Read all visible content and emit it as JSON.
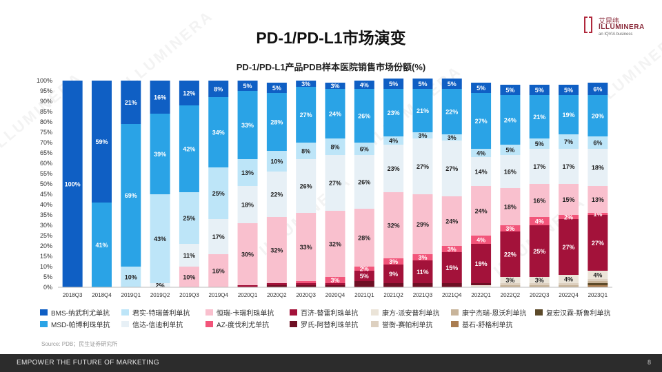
{
  "page": {
    "title": "PD-1/PD-L1市场演变",
    "logo": {
      "cn": "艾昆纬",
      "en": "ILLUMINERA",
      "tagline": "an IQVIA business"
    },
    "watermark": "ILLUMINERA",
    "source": "Source: PDB；民生证券研究所",
    "footer_slogan": "EMPOWER THE FUTURE OF MARKETING",
    "page_number": "8"
  },
  "chart_data": {
    "type": "bar",
    "stacked": true,
    "title": "PD-1/PD-L1产品PDB样本医院销售市场份额(%)",
    "ylim": [
      0,
      100
    ],
    "yticks": [
      "0%",
      "5%",
      "10%",
      "15%",
      "20%",
      "25%",
      "30%",
      "35%",
      "40%",
      "45%",
      "50%",
      "55%",
      "60%",
      "65%",
      "70%",
      "75%",
      "80%",
      "85%",
      "90%",
      "95%",
      "100%"
    ],
    "categories": [
      "2018Q3",
      "2018Q4",
      "2019Q1",
      "2019Q2",
      "2019Q3",
      "2019Q4",
      "2020Q1",
      "2020Q2",
      "2020Q3",
      "2020Q4",
      "2021Q1",
      "2021Q2",
      "2021Q3",
      "2021Q4",
      "2022Q1",
      "2022Q2",
      "2022Q3",
      "2022Q4",
      "2023Q1"
    ],
    "series": [
      {
        "name": "基石-舒格利单抗",
        "color": "#a97c50",
        "values": [
          0,
          0,
          0,
          0,
          0,
          0,
          0,
          0,
          0,
          0,
          0,
          0,
          0,
          0,
          0,
          0,
          0,
          0,
          1
        ],
        "labels": [
          "",
          "",
          "",
          "",
          "",
          "",
          "",
          "",
          "",
          "",
          "",
          "",
          "",
          "",
          "",
          "",
          "",
          "",
          ""
        ]
      },
      {
        "name": "复宏汉霖-斯鲁利单抗",
        "color": "#5c4a2a",
        "values": [
          0,
          0,
          0,
          0,
          0,
          0,
          0,
          0,
          0,
          0,
          0,
          0,
          0,
          0,
          0,
          0,
          0,
          0,
          1
        ],
        "labels": [
          "",
          "",
          "",
          "",
          "",
          "",
          "",
          "",
          "",
          "",
          "",
          "",
          "",
          "",
          "",
          "",
          "",
          "",
          ""
        ]
      },
      {
        "name": "康宁杰瑞-恩沃利单抗",
        "color": "#c8b49a",
        "values": [
          0,
          0,
          0,
          0,
          0,
          0,
          0,
          0,
          0,
          0,
          0,
          0,
          0,
          0,
          0,
          1,
          1,
          1,
          1
        ],
        "labels": [
          "",
          "",
          "",
          "",
          "",
          "",
          "",
          "",
          "",
          "",
          "",
          "",
          "",
          "",
          "",
          "",
          "",
          "",
          ""
        ]
      },
      {
        "name": "誉衡-赛帕利单抗",
        "color": "#ddd0c0",
        "values": [
          0,
          0,
          0,
          0,
          0,
          0,
          0,
          0,
          0,
          0,
          0,
          0,
          0,
          0,
          0,
          1,
          1,
          1,
          1
        ],
        "labels": [
          "",
          "",
          "",
          "",
          "",
          "",
          "",
          "",
          "",
          "",
          "",
          "",
          "",
          "",
          "",
          "",
          "",
          "",
          ""
        ]
      },
      {
        "name": "康方-派安普利单抗",
        "color": "#ebe4d8",
        "values": [
          0,
          0,
          0,
          0,
          0,
          0,
          0,
          0,
          0,
          0,
          0,
          0,
          0,
          0,
          1,
          3,
          3,
          4,
          4
        ],
        "labels": [
          "",
          "",
          "",
          "",
          "",
          "",
          "",
          "",
          "",
          "",
          "",
          "",
          "",
          "",
          "",
          "3%",
          "3%",
          "4%",
          "4%"
        ]
      },
      {
        "name": "罗氏-阿替利珠单抗",
        "color": "#6e0f24",
        "values": [
          0,
          0,
          0,
          0,
          0,
          0,
          0,
          1,
          1,
          1,
          3,
          2,
          2,
          2,
          1,
          0,
          0,
          0,
          0
        ],
        "labels": [
          "",
          "",
          "",
          "",
          "",
          "",
          "",
          "",
          "",
          "",
          "",
          "",
          "",
          "",
          "",
          "",
          "",
          "",
          ""
        ]
      },
      {
        "name": "百济-替雷利珠单抗",
        "color": "#a3123a",
        "values": [
          0,
          0,
          0,
          0,
          0,
          0,
          1,
          1,
          1,
          1,
          5,
          9,
          11,
          15,
          19,
          22,
          25,
          27,
          27
        ],
        "labels": [
          "",
          "",
          "",
          "",
          "",
          "",
          "",
          "",
          "",
          "",
          "5%",
          "9%",
          "11%",
          "15%",
          "19%",
          "22%",
          "25%",
          "27%",
          "27%"
        ]
      },
      {
        "name": "AZ-度伐利尤单抗",
        "color": "#f2557a",
        "values": [
          0,
          0,
          0,
          0,
          0,
          0,
          0,
          0,
          1,
          3,
          2,
          3,
          3,
          3,
          4,
          3,
          4,
          2,
          1
        ],
        "labels": [
          "",
          "",
          "",
          "",
          "",
          "",
          "",
          "",
          "",
          "3%",
          "2%",
          "3%",
          "3%",
          "3%",
          "4%",
          "3%",
          "4%",
          "2%",
          "1%"
        ]
      },
      {
        "name": "恒瑞-卡瑞利珠单抗",
        "color": "#f9c0ce",
        "values": [
          0,
          0,
          0,
          0,
          10,
          16,
          30,
          32,
          33,
          32,
          28,
          32,
          29,
          24,
          24,
          18,
          16,
          15,
          13
        ],
        "labels": [
          "",
          "",
          "",
          "",
          "10%",
          "16%",
          "30%",
          "32%",
          "33%",
          "32%",
          "28%",
          "32%",
          "29%",
          "24%",
          "24%",
          "18%",
          "16%",
          "15%",
          "13%"
        ]
      },
      {
        "name": "信达-信迪利单抗",
        "color": "#e7f0f6",
        "values": [
          0,
          0,
          0,
          2,
          11,
          17,
          18,
          22,
          26,
          27,
          26,
          23,
          27,
          27,
          14,
          16,
          17,
          17,
          18
        ],
        "labels": [
          "",
          "",
          "",
          "2%",
          "11%",
          "17%",
          "18%",
          "22%",
          "26%",
          "27%",
          "26%",
          "23%",
          "27%",
          "27%",
          "14%",
          "16%",
          "17%",
          "17%",
          "18%"
        ]
      },
      {
        "name": "君实-特瑞普利单抗",
        "color": "#bde5f8",
        "values": [
          0,
          0,
          10,
          43,
          25,
          25,
          13,
          10,
          8,
          8,
          6,
          4,
          3,
          3,
          4,
          5,
          5,
          7,
          6
        ],
        "labels": [
          "",
          "",
          "10%",
          "43%",
          "25%",
          "25%",
          "13%",
          "10%",
          "8%",
          "8%",
          "6%",
          "4%",
          "3%",
          "3%",
          "4%",
          "5%",
          "5%",
          "7%",
          "6%"
        ]
      },
      {
        "name": "MSD-帕博利珠单抗",
        "color": "#2aa3e6",
        "values": [
          0,
          41,
          69,
          39,
          42,
          34,
          33,
          28,
          27,
          24,
          26,
          23,
          21,
          22,
          27,
          24,
          21,
          19,
          20
        ],
        "labels": [
          "",
          "41%",
          "69%",
          "39%",
          "42%",
          "34%",
          "33%",
          "28%",
          "27%",
          "24%",
          "26%",
          "23%",
          "21%",
          "22%",
          "27%",
          "24%",
          "21%",
          "19%",
          "20%"
        ]
      },
      {
        "name": "BMS-纳武利尤单抗",
        "color": "#0f5fc4",
        "values": [
          100,
          59,
          21,
          16,
          12,
          8,
          5,
          5,
          3,
          3,
          4,
          5,
          5,
          5,
          5,
          5,
          5,
          5,
          6
        ],
        "labels": [
          "100%",
          "59%",
          "21%",
          "16%",
          "12%",
          "8%",
          "5%",
          "5%",
          "3%",
          "3%",
          "4%",
          "5%",
          "5%",
          "5%",
          "5%",
          "5%",
          "5%",
          "5%",
          "6%"
        ]
      }
    ],
    "legend": [
      [
        "BMS-纳武利尤单抗",
        "#0f5fc4"
      ],
      [
        "君实-特瑞普利单抗",
        "#bde5f8"
      ],
      [
        "恒瑞-卡瑞利珠单抗",
        "#f9c0ce"
      ],
      [
        "百济-替雷利珠单抗",
        "#a3123a"
      ],
      [
        "康方-派安普利单抗",
        "#ebe4d8"
      ],
      [
        "康宁杰瑞-恩沃利单抗",
        "#c8b49a"
      ],
      [
        "复宏汉霖-斯鲁利单抗",
        "#5c4a2a"
      ],
      [
        "MSD-帕博利珠单抗",
        "#2aa3e6"
      ],
      [
        "信达-信迪利单抗",
        "#e7f0f6"
      ],
      [
        "AZ-度伐利尤单抗",
        "#f2557a"
      ],
      [
        "罗氏-阿替利珠单抗",
        "#6e0f24"
      ],
      [
        "誉衡-赛帕利单抗",
        "#ddd0c0"
      ],
      [
        "基石-舒格利单抗",
        "#a97c50"
      ]
    ]
  }
}
